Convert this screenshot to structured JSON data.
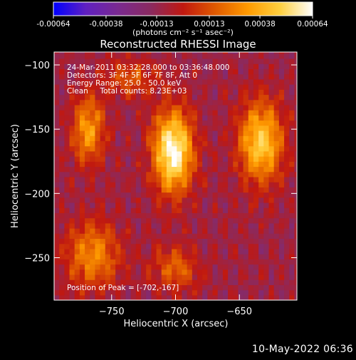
{
  "window": {
    "footer_timestamp": "10-May-2022 06:36"
  },
  "colorbar": {
    "tick_labels": [
      "-0.00064",
      "-0.00038",
      "-0.00013",
      "0.00013",
      "0.00038",
      "0.00064"
    ],
    "tick_values": [
      -0.00064,
      -0.00038,
      -0.00013,
      0.00013,
      0.00038,
      0.00064
    ],
    "range": [
      -0.00064,
      0.00064
    ],
    "units_label": "(photons cm⁻² s⁻¹ asec⁻²)",
    "stops": [
      "#0000ff",
      "#6020c0",
      "#7a2a90",
      "#8a2a60",
      "#c01810",
      "#e05a00",
      "#ff9a00",
      "#ffd040",
      "#ffffff"
    ]
  },
  "chart_data": {
    "type": "heatmap",
    "title": "Reconstructed RHESSI Image",
    "xlabel": "Heliocentric X (arcsec)",
    "ylabel": "Heliocentric Y (arcsec)",
    "xlim": [
      -795,
      -605
    ],
    "ylim": [
      -283,
      -90
    ],
    "x_ticks": [
      -750,
      -700,
      -650
    ],
    "x_tick_labels": [
      "−750",
      "−700",
      "−650"
    ],
    "y_ticks": [
      -100,
      -150,
      -200,
      -250
    ],
    "y_tick_labels": [
      "−100",
      "−150",
      "−200",
      "−250"
    ],
    "annotations": [
      "24-Mar-2011 03:32:28.000 to 03:36:48.000",
      "Detectors: 3F 4F 5F 6F 7F 8F, Att 0",
      "Energy Range: 25.0 - 50.0 keV",
      "Clean     Total counts: 8.23E+03"
    ],
    "peak_label": "Position of Peak = [-702,-167]",
    "peak": [
      -702,
      -167
    ],
    "sources": [
      {
        "x": -702,
        "y": -167,
        "sx": 11,
        "sy": 22,
        "amp": 1.0
      },
      {
        "x": -633,
        "y": -160,
        "sx": 12,
        "sy": 22,
        "amp": 0.78
      },
      {
        "x": -768,
        "y": -150,
        "sx": 9,
        "sy": 18,
        "amp": 0.58
      },
      {
        "x": -765,
        "y": -248,
        "sx": 15,
        "sy": 18,
        "amp": 0.5
      },
      {
        "x": -700,
        "y": -258,
        "sx": 12,
        "sy": 12,
        "amp": 0.38
      },
      {
        "x": -735,
        "y": -110,
        "sx": 14,
        "sy": 10,
        "amp": 0.32
      }
    ]
  }
}
